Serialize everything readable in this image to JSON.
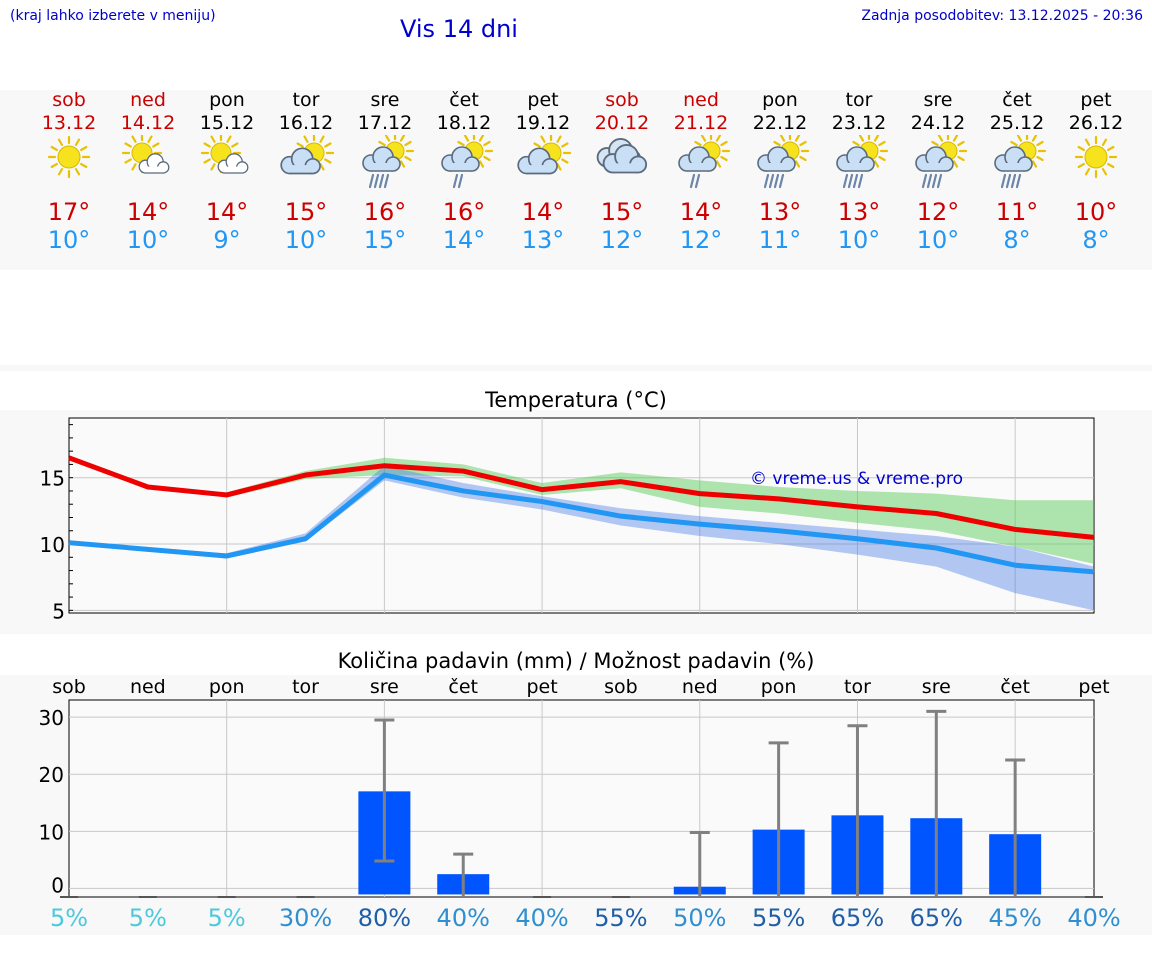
{
  "header": {
    "hint": "(kraj lahko izberete v meniju)",
    "title": "Vis 14 dni",
    "updated": "Zadnja posodobitev: 13.12.2025 - 20:36"
  },
  "days": [
    {
      "name": "sob",
      "date": "13.12",
      "icon": "sun-icon",
      "max": "17°",
      "min": "10°",
      "weekend": true
    },
    {
      "name": "ned",
      "date": "14.12",
      "icon": "sun-cloud-icon",
      "max": "14°",
      "min": "10°",
      "weekend": true
    },
    {
      "name": "pon",
      "date": "15.12",
      "icon": "sun-cloud-icon",
      "max": "14°",
      "min": "9°",
      "weekend": false
    },
    {
      "name": "tor",
      "date": "16.12",
      "icon": "cloud-sun-icon",
      "max": "15°",
      "min": "10°",
      "weekend": false
    },
    {
      "name": "sre",
      "date": "17.12",
      "icon": "cloud-rain-heavy-icon",
      "max": "16°",
      "min": "15°",
      "weekend": false
    },
    {
      "name": "čet",
      "date": "18.12",
      "icon": "cloud-rain-icon",
      "max": "16°",
      "min": "14°",
      "weekend": false
    },
    {
      "name": "pet",
      "date": "19.12",
      "icon": "cloud-sun-icon",
      "max": "14°",
      "min": "13°",
      "weekend": false
    },
    {
      "name": "sob",
      "date": "20.12",
      "icon": "overcast-icon",
      "max": "15°",
      "min": "12°",
      "weekend": true
    },
    {
      "name": "ned",
      "date": "21.12",
      "icon": "cloud-rain-icon",
      "max": "14°",
      "min": "12°",
      "weekend": true
    },
    {
      "name": "pon",
      "date": "22.12",
      "icon": "cloud-rain-heavy-icon",
      "max": "13°",
      "min": "11°",
      "weekend": false
    },
    {
      "name": "tor",
      "date": "23.12",
      "icon": "cloud-rain-heavy-icon",
      "max": "13°",
      "min": "10°",
      "weekend": false
    },
    {
      "name": "sre",
      "date": "24.12",
      "icon": "cloud-rain-heavy-icon",
      "max": "12°",
      "min": "10°",
      "weekend": false
    },
    {
      "name": "čet",
      "date": "25.12",
      "icon": "cloud-rain-heavy-icon",
      "max": "11°",
      "min": "8°",
      "weekend": false
    },
    {
      "name": "pet",
      "date": "26.12",
      "icon": "sun-icon",
      "max": "10°",
      "min": "8°",
      "weekend": false
    }
  ],
  "chart_data": [
    {
      "type": "line",
      "title": "Temperatura (°C)",
      "watermark": "© vreme.us & vreme.pro",
      "ylim": [
        4.8,
        19.5
      ],
      "yticks": [
        5,
        10,
        15
      ],
      "series": [
        {
          "name": "max",
          "color": "#ee0000",
          "values": [
            16.5,
            14.3,
            13.7,
            15.2,
            15.9,
            15.5,
            14.1,
            14.7,
            13.8,
            13.4,
            12.8,
            12.3,
            11.1,
            10.5
          ]
        },
        {
          "name": "min",
          "color": "#2196f3",
          "values": [
            10.1,
            9.6,
            9.1,
            10.4,
            15.2,
            14.0,
            13.2,
            12.1,
            11.5,
            11.0,
            10.4,
            9.7,
            8.4,
            7.9
          ]
        }
      ],
      "max_band": {
        "upper": [
          16.5,
          14.3,
          13.9,
          15.5,
          16.5,
          16.0,
          14.6,
          15.4,
          14.8,
          14.3,
          14.0,
          13.8,
          13.3,
          13.3
        ],
        "lower": [
          16.5,
          14.3,
          13.5,
          14.9,
          15.2,
          15.1,
          13.7,
          14.2,
          12.8,
          12.3,
          11.6,
          11.0,
          9.8,
          8.5
        ]
      },
      "min_band": {
        "upper": [
          10.1,
          9.6,
          9.3,
          10.8,
          15.9,
          14.6,
          13.6,
          12.7,
          12.1,
          11.6,
          11.1,
          10.6,
          9.8,
          8.3
        ],
        "lower": [
          10.1,
          9.6,
          8.9,
          10.2,
          14.8,
          13.5,
          12.6,
          11.4,
          10.6,
          10.0,
          9.2,
          8.3,
          6.3,
          5.0
        ]
      }
    },
    {
      "type": "bar",
      "title": "Količina padavin (mm) / Možnost padavin (%)",
      "categories": [
        "sob",
        "ned",
        "pon",
        "tor",
        "sre",
        "čet",
        "pet",
        "sob",
        "ned",
        "pon",
        "tor",
        "sre",
        "čet",
        "pet"
      ],
      "ylim": [
        -1.5,
        33
      ],
      "yticks": [
        0,
        10,
        20,
        30
      ],
      "values": [
        0,
        0,
        0,
        0,
        17.0,
        2.5,
        0,
        0,
        0.3,
        10.3,
        12.8,
        12.3,
        9.5,
        0
      ],
      "err_low": [
        0,
        0,
        0,
        0,
        4.8,
        0,
        0,
        0,
        0,
        0,
        0,
        0,
        0,
        0
      ],
      "err_high": [
        0,
        0,
        0,
        0,
        29.5,
        6.0,
        0,
        0,
        9.8,
        25.5,
        28.5,
        31.0,
        22.5,
        0
      ],
      "chance": [
        "5%",
        "5%",
        "5%",
        "30%",
        "80%",
        "40%",
        "40%",
        "55%",
        "50%",
        "55%",
        "65%",
        "65%",
        "45%",
        "40%"
      ],
      "chance_values": [
        5,
        5,
        5,
        30,
        80,
        40,
        40,
        55,
        50,
        55,
        65,
        65,
        45,
        40
      ],
      "bar_color": "#0055ff"
    }
  ]
}
